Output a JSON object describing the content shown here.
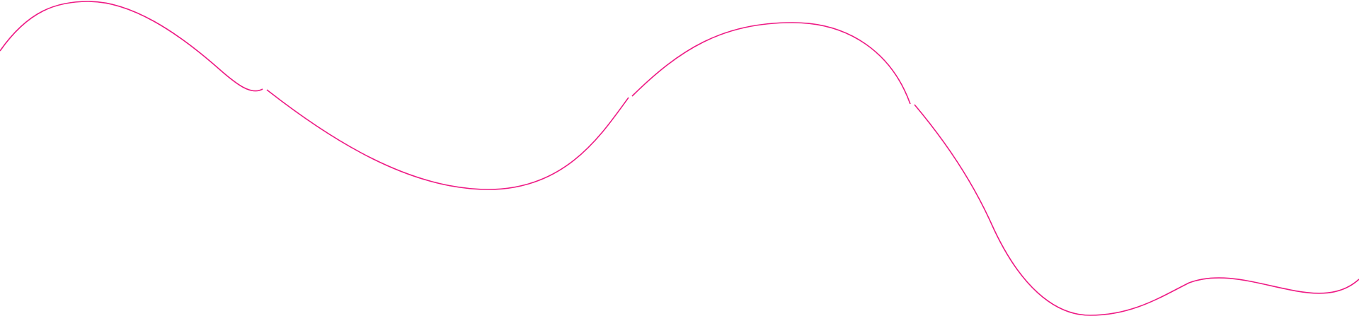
{
  "decoration": {
    "type": "wavy-line",
    "stroke_color": "#ee1b85",
    "background_color": "#ffffff"
  }
}
